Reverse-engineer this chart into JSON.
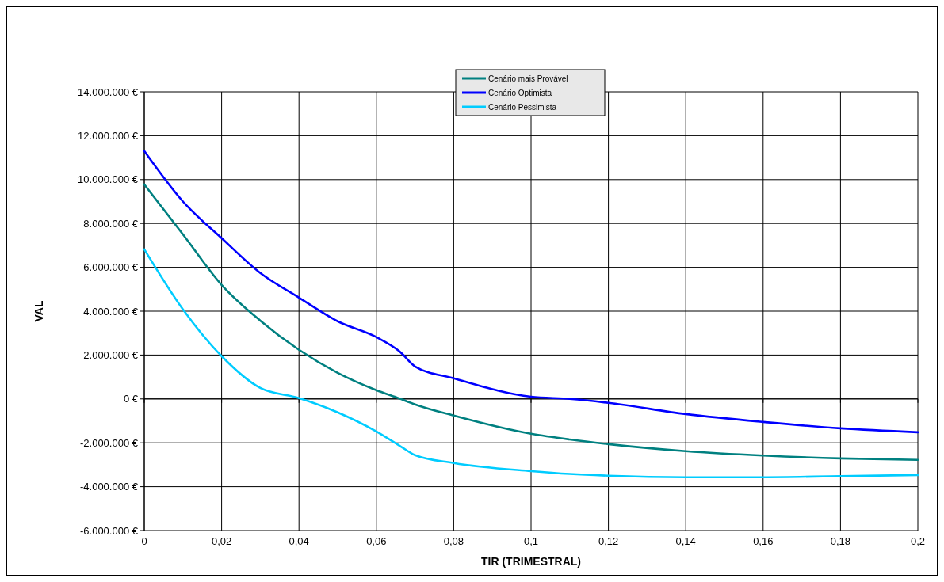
{
  "chart_data": {
    "type": "line",
    "xlabel": "TIR (TRIMESTRAL)",
    "ylabel": "VAL",
    "x": [
      0,
      0.01,
      0.02,
      0.03,
      0.04,
      0.05,
      0.06,
      0.066,
      0.07,
      0.08,
      0.1,
      0.11,
      0.12,
      0.14,
      0.16,
      0.18,
      0.2
    ],
    "series": [
      {
        "name": "Cenário mais Provável",
        "color": "#008080",
        "values": [
          9780000,
          7500000,
          5200000,
          3570000,
          2240000,
          1190000,
          400000,
          20000,
          -250000,
          -760000,
          -1590000,
          -1850000,
          -2060000,
          -2380000,
          -2580000,
          -2710000,
          -2780000
        ]
      },
      {
        "name": "Cenário Optimista",
        "color": "#0000ff",
        "values": [
          11300000,
          9000000,
          7330000,
          5740000,
          4620000,
          3540000,
          2820000,
          2170000,
          1480000,
          940000,
          100000,
          0,
          -180000,
          -690000,
          -1050000,
          -1340000,
          -1520000
        ]
      },
      {
        "name": "Cenário Pessimista",
        "color": "#00ccff",
        "values": [
          6820000,
          4080000,
          1950000,
          500000,
          40000,
          -610000,
          -1480000,
          -2130000,
          -2560000,
          -2920000,
          -3290000,
          -3420000,
          -3500000,
          -3570000,
          -3570000,
          -3520000,
          -3470000
        ]
      }
    ],
    "xlim": [
      0,
      0.2
    ],
    "xticks": [
      0,
      {
        "value": 0.02,
        "label": "0,02"
      },
      {
        "value": 0.04,
        "label": "0,04"
      },
      {
        "value": 0.06,
        "label": "0,06"
      },
      {
        "value": 0.08,
        "label": "0,08"
      },
      {
        "value": 0.1,
        "label": "0,1"
      },
      {
        "value": 0.12,
        "label": "0,12"
      },
      {
        "value": 0.14,
        "label": "0,14"
      },
      {
        "value": 0.16,
        "label": "0,16"
      },
      {
        "value": 0.18,
        "label": "0,18"
      },
      {
        "value": 0.2,
        "label": "0,2"
      }
    ],
    "ylim": [
      -6000000,
      14000000
    ],
    "yticks": [
      {
        "value": -6000000,
        "label": "-6.000.000 €"
      },
      {
        "value": -4000000,
        "label": "-4.000.000 €"
      },
      {
        "value": -2000000,
        "label": "-2.000.000 €"
      },
      {
        "value": 0,
        "label": "0 €"
      },
      {
        "value": 2000000,
        "label": "2.000.000 €"
      },
      {
        "value": 4000000,
        "label": "4.000.000 €"
      },
      {
        "value": 6000000,
        "label": "6.000.000 €"
      },
      {
        "value": 8000000,
        "label": "8.000.000 €"
      },
      {
        "value": 10000000,
        "label": "10.000.000 €"
      },
      {
        "value": 12000000,
        "label": "12.000.000 €"
      },
      {
        "value": 14000000,
        "label": "14.000.000 €"
      }
    ],
    "grid": true,
    "legend": "top",
    "marker": "none",
    "line_style": "solid"
  }
}
